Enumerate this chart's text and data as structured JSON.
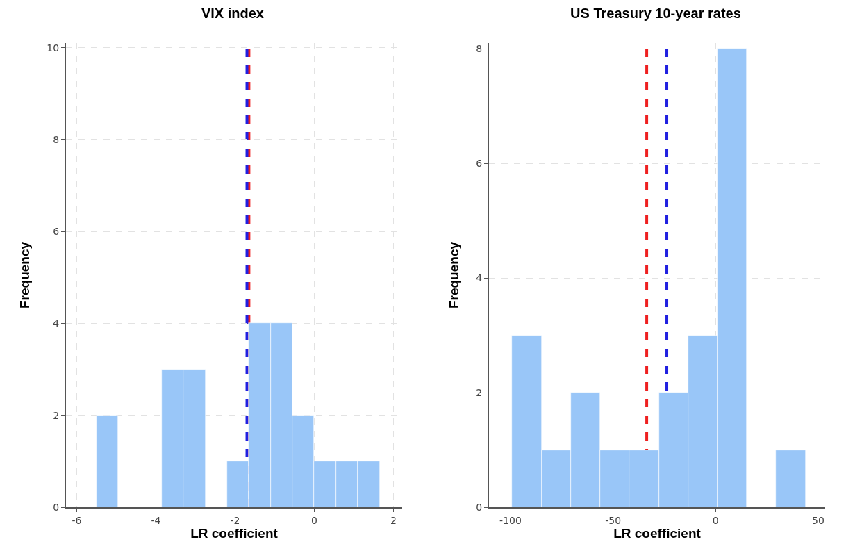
{
  "chart_data": [
    {
      "type": "histogram",
      "title": "VIX index",
      "xlabel": "LR coefficient",
      "ylabel": "Frequency",
      "color": "#99c6f8",
      "bins": [
        -5.5,
        -4.95,
        -4.4,
        -3.85,
        -3.3,
        -2.75,
        -2.2,
        -1.65,
        -1.1,
        -0.55,
        0,
        0.55,
        1.1,
        1.65
      ],
      "values": [
        2,
        0,
        0,
        3,
        3,
        0,
        1,
        4,
        4,
        2,
        1,
        1,
        1
      ],
      "xlim": [
        -6.27,
        2.22
      ],
      "xticks": [
        -6,
        -4,
        -2,
        0,
        2
      ],
      "ylim": [
        0,
        10.1
      ],
      "yticks": [
        0,
        2,
        4,
        6,
        8,
        10
      ],
      "grid": true,
      "ref_lines": [
        {
          "axis": "x",
          "value": -1.65,
          "color": "#ee2020",
          "line_style": "dashed"
        },
        {
          "axis": "x",
          "value": -1.7,
          "color": "#2020e0",
          "line_style": "dashed"
        }
      ]
    },
    {
      "type": "histogram",
      "title": "US Treasury 10-year rates",
      "xlabel": "LR coefficient",
      "ylabel": "Frequency",
      "color": "#99c6f8",
      "bins": [
        -99.2,
        -84.9,
        -70.6,
        -56.3,
        -42,
        -27.7,
        -13.4,
        0.9,
        15.2,
        29.5,
        43.8
      ],
      "values": [
        3,
        1,
        2,
        1,
        1,
        2,
        3,
        8,
        0,
        1
      ],
      "xlim": [
        -110.5,
        53.4
      ],
      "xticks": [
        -100,
        -50,
        0,
        50
      ],
      "ylim": [
        0,
        8.1
      ],
      "yticks": [
        0,
        2,
        4,
        6,
        8
      ],
      "grid": true,
      "ref_lines": [
        {
          "axis": "x",
          "value": -33.6,
          "color": "#ee2020",
          "line_style": "dashed"
        },
        {
          "axis": "x",
          "value": -23.8,
          "color": "#2020e0",
          "line_style": "dashed"
        }
      ]
    }
  ]
}
